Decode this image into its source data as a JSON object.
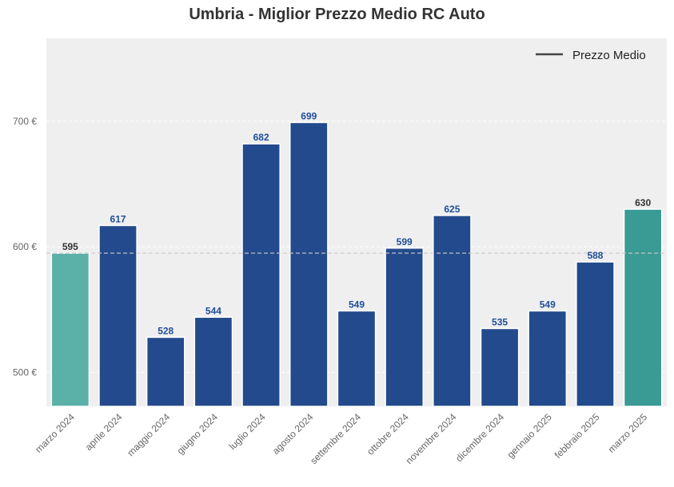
{
  "chart_data": {
    "type": "bar",
    "title": "Umbria - Miglior Prezzo Medio RC Auto",
    "xlabel": "",
    "ylabel": "",
    "categories": [
      "marzo 2024",
      "aprile 2024",
      "maggio 2024",
      "giugno 2024",
      "luglio 2024",
      "agosto 2024",
      "settembre 2024",
      "ottobre 2024",
      "novembre 2024",
      "dicembre 2024",
      "gennaio 2025",
      "febbraio 2025",
      "marzo 2025"
    ],
    "values": [
      595,
      617,
      528,
      544,
      682,
      699,
      549,
      599,
      625,
      535,
      549,
      588,
      630
    ],
    "value_labels": [
      "595",
      "617",
      "528",
      "544",
      "682",
      "699",
      "549",
      "599",
      "625",
      "535",
      "549",
      "588",
      "630"
    ],
    "bar_colors": [
      "#5bb0a8",
      "#234a8c",
      "#234a8c",
      "#234a8c",
      "#234a8c",
      "#234a8c",
      "#234a8c",
      "#234a8c",
      "#234a8c",
      "#234a8c",
      "#234a8c",
      "#234a8c",
      "#3a9a94"
    ],
    "label_colors": [
      "#333333",
      "#1f4e99",
      "#1f4e99",
      "#1f4e99",
      "#1f4e99",
      "#1f4e99",
      "#1f4e99",
      "#1f4e99",
      "#1f4e99",
      "#1f4e99",
      "#1f4e99",
      "#1f4e99",
      "#333333"
    ],
    "ylim": [
      473,
      766
    ],
    "yticks": [
      500,
      600,
      700
    ],
    "ytick_labels": [
      "500 €",
      "600 €",
      "700 €"
    ],
    "reference_line": {
      "value": 595,
      "label": "Prezzo Medio",
      "style": "dashed",
      "color": "#cccccc"
    },
    "legend": {
      "placement": "top-right",
      "entries": [
        "Prezzo Medio"
      ]
    },
    "grid": true,
    "background_color": "#efefef"
  }
}
